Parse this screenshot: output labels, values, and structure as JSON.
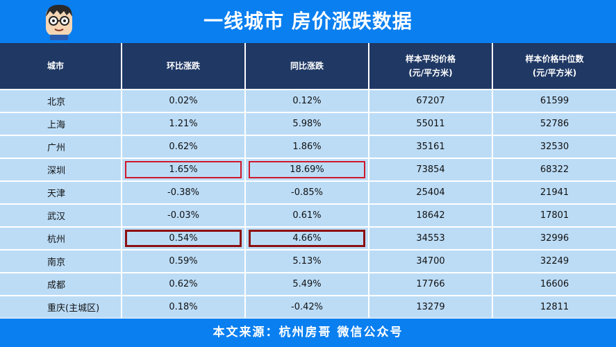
{
  "header": {
    "title": "一线城市 房价涨跌数据"
  },
  "table": {
    "columns": [
      "城市",
      "环比涨跌",
      "同比涨跌",
      "样本平均价格\n(元/平方米)",
      "样本价格中位数\n(元/平方米)"
    ],
    "rows": [
      [
        "北京",
        "0.02%",
        "0.12%",
        "67207",
        "61599"
      ],
      [
        "上海",
        "1.21%",
        "5.98%",
        "55011",
        "52786"
      ],
      [
        "广州",
        "0.62%",
        "1.86%",
        "35161",
        "32530"
      ],
      [
        "深圳",
        "1.65%",
        "18.69%",
        "73854",
        "68322"
      ],
      [
        "天津",
        "-0.38%",
        "-0.85%",
        "25404",
        "21941"
      ],
      [
        "武汉",
        "-0.03%",
        "0.61%",
        "18642",
        "17801"
      ],
      [
        "杭州",
        "0.54%",
        "4.66%",
        "34553",
        "32996"
      ],
      [
        "南京",
        "0.59%",
        "5.13%",
        "34700",
        "32249"
      ],
      [
        "成都",
        "0.62%",
        "5.49%",
        "17766",
        "16606"
      ],
      [
        "重庆(主城区)",
        "0.18%",
        "-0.42%",
        "13279",
        "12811"
      ]
    ]
  },
  "footer": {
    "text": "本文来源：杭州房哥 微信公众号"
  },
  "colors": {
    "brand_blue": "#0a7ff0",
    "header_navy": "#1f3864",
    "cell_blue": "#bcdcf6",
    "highlight_red": "#d0182a"
  }
}
